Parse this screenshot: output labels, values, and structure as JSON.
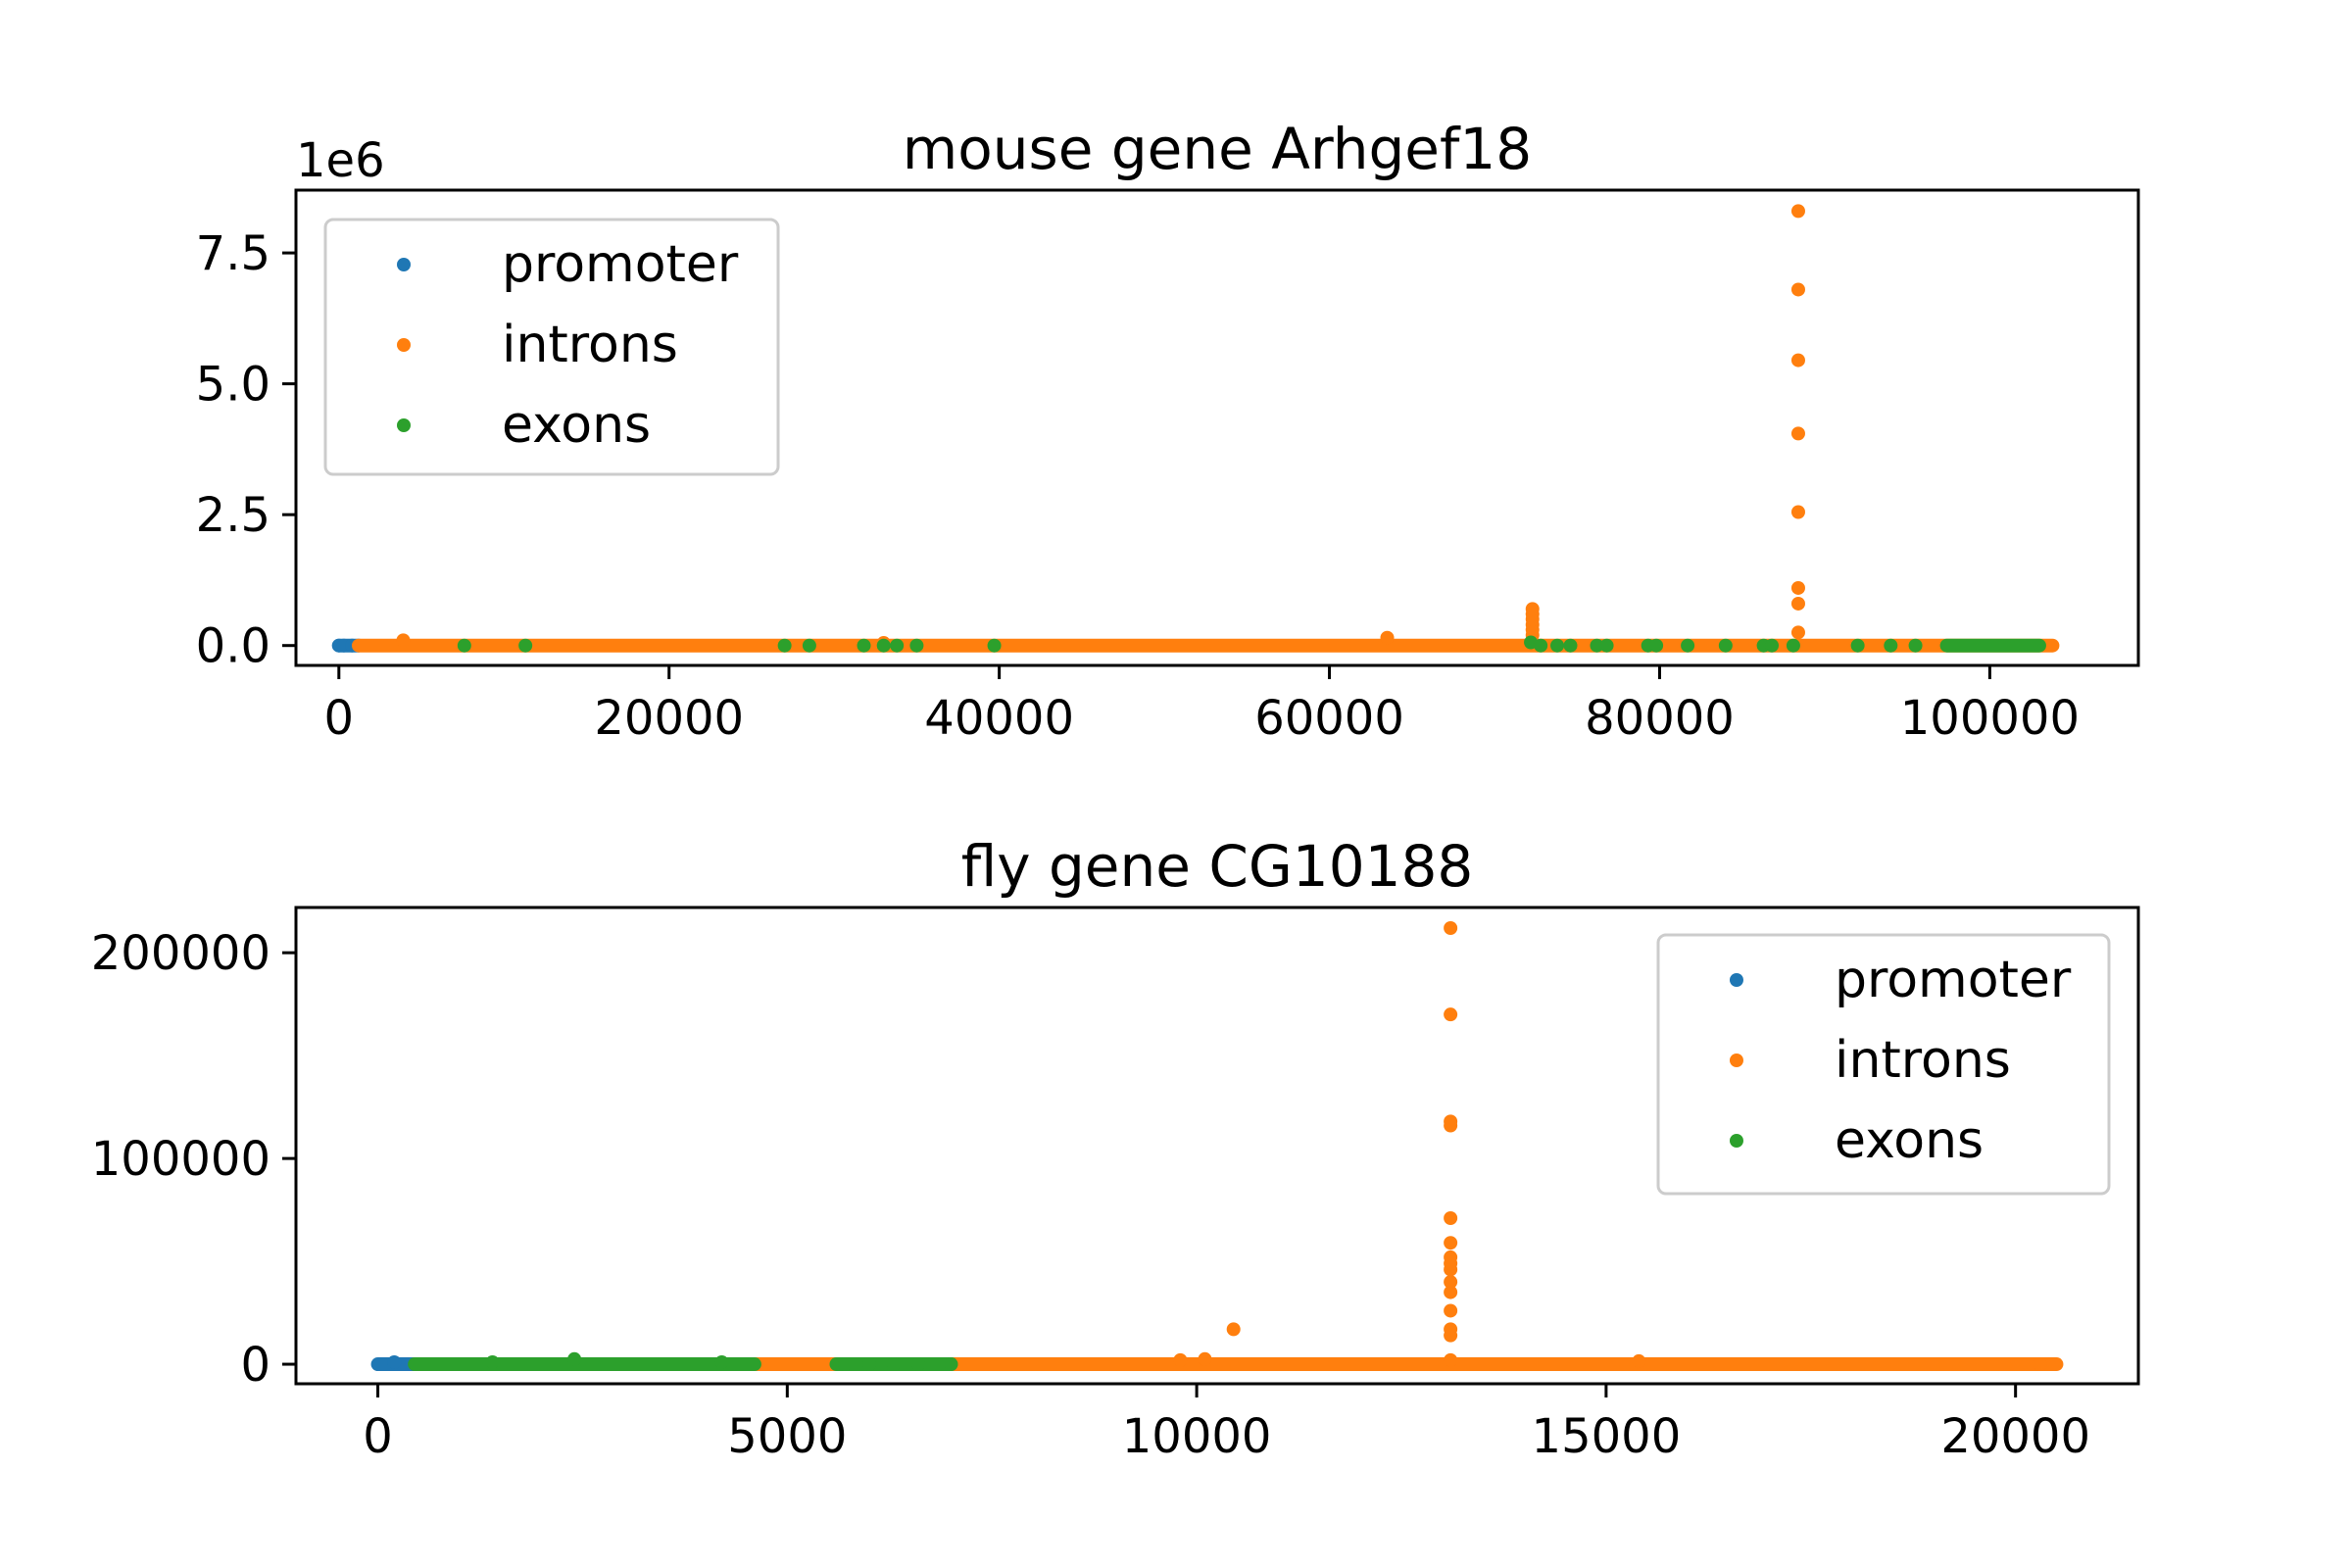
{
  "chart_data": [
    {
      "type": "scatter",
      "title": "mouse gene Arhgef18",
      "xlabel": "",
      "ylabel": "",
      "y_offset_label": "1e6",
      "xlim": [
        -2600,
        109000
      ],
      "ylim": [
        -380000,
        8700000
      ],
      "xticks": [
        0,
        20000,
        40000,
        60000,
        80000,
        100000
      ],
      "xtick_labels": [
        "0",
        "20000",
        "40000",
        "60000",
        "80000",
        "100000"
      ],
      "yticks": [
        0,
        2500000,
        5000000,
        7500000
      ],
      "ytick_labels": [
        "0.0",
        "2.5",
        "5.0",
        "7.5"
      ],
      "legend": "top-left",
      "grid": false,
      "series": [
        {
          "name": "promoter",
          "color": "#1f77b4",
          "band": [
            0,
            1200
          ],
          "points": [
            [
              0,
              0
            ],
            [
              300,
              0
            ],
            [
              800,
              0
            ]
          ]
        },
        {
          "name": "introns",
          "color": "#ff7f0e",
          "band": [
            1200,
            103800
          ],
          "points": [
            [
              3900,
              100000
            ],
            [
              33000,
              50000
            ],
            [
              63500,
              150000
            ],
            [
              72300,
              200000
            ],
            [
              72300,
              300000
            ],
            [
              72300,
              400000
            ],
            [
              72300,
              500000
            ],
            [
              72300,
              600000
            ],
            [
              72300,
              700000
            ],
            [
              88400,
              250000
            ],
            [
              88400,
              800000
            ],
            [
              88400,
              1100000
            ],
            [
              88400,
              2550000
            ],
            [
              88400,
              4050000
            ],
            [
              88400,
              5450000
            ],
            [
              88400,
              6800000
            ],
            [
              88400,
              8300000
            ]
          ]
        },
        {
          "name": "exons",
          "color": "#2ca02c",
          "band": [
            97400,
            103000
          ],
          "points": [
            [
              7600,
              0
            ],
            [
              11300,
              0
            ],
            [
              27000,
              0
            ],
            [
              28500,
              0
            ],
            [
              31800,
              0
            ],
            [
              33000,
              0
            ],
            [
              33800,
              0
            ],
            [
              35000,
              0
            ],
            [
              39700,
              0
            ],
            [
              72200,
              60000
            ],
            [
              72800,
              0
            ],
            [
              73800,
              0
            ],
            [
              74600,
              0
            ],
            [
              76200,
              0
            ],
            [
              76800,
              0
            ],
            [
              79300,
              0
            ],
            [
              79800,
              0
            ],
            [
              81700,
              0
            ],
            [
              84000,
              0
            ],
            [
              86300,
              0
            ],
            [
              86800,
              0
            ],
            [
              88100,
              0
            ],
            [
              92000,
              0
            ],
            [
              94000,
              0
            ],
            [
              95500,
              0
            ]
          ]
        }
      ]
    },
    {
      "type": "scatter",
      "title": "fly gene CG10188",
      "xlabel": "",
      "ylabel": "",
      "xlim": [
        -1000,
        21500
      ],
      "ylim": [
        -9500,
        222000
      ],
      "xticks": [
        0,
        5000,
        10000,
        15000,
        20000
      ],
      "xtick_labels": [
        "0",
        "5000",
        "10000",
        "15000",
        "20000"
      ],
      "yticks": [
        0,
        100000,
        200000
      ],
      "ytick_labels": [
        "0",
        "100000",
        "200000"
      ],
      "legend": "top-right",
      "grid": false,
      "series": [
        {
          "name": "promoter",
          "color": "#1f77b4",
          "band": [
            0,
            450
          ],
          "points": [
            [
              200,
              1000
            ]
          ]
        },
        {
          "name": "introns",
          "color": "#ff7f0e",
          "band": [
            4600,
            20500
          ],
          "points": [
            [
              9800,
              2000
            ],
            [
              10100,
              2500
            ],
            [
              10450,
              17000
            ],
            [
              13100,
              2000
            ],
            [
              13100,
              14000
            ],
            [
              13100,
              17000
            ],
            [
              13100,
              26000
            ],
            [
              13100,
              35000
            ],
            [
              13100,
              40000
            ],
            [
              13100,
              46000
            ],
            [
              13100,
              49000
            ],
            [
              13100,
              52000
            ],
            [
              13100,
              59000
            ],
            [
              13100,
              71000
            ],
            [
              13100,
              116000
            ],
            [
              13100,
              118000
            ],
            [
              13100,
              170000
            ],
            [
              13100,
              212000
            ],
            [
              15400,
              1500
            ],
            [
              20300,
              0
            ]
          ]
        },
        {
          "name": "exons",
          "color": "#2ca02c",
          "band": [
            450,
            4600
          ],
          "points": [
            [
              1400,
              1000
            ],
            [
              2400,
              2500
            ],
            [
              4200,
              1000
            ],
            [
              5700,
              0
            ],
            [
              6000,
              0
            ],
            [
              6300,
              0
            ],
            [
              6600,
              0
            ],
            [
              7000,
              0
            ]
          ],
          "band2": [
            5600,
            7000
          ]
        }
      ]
    }
  ]
}
